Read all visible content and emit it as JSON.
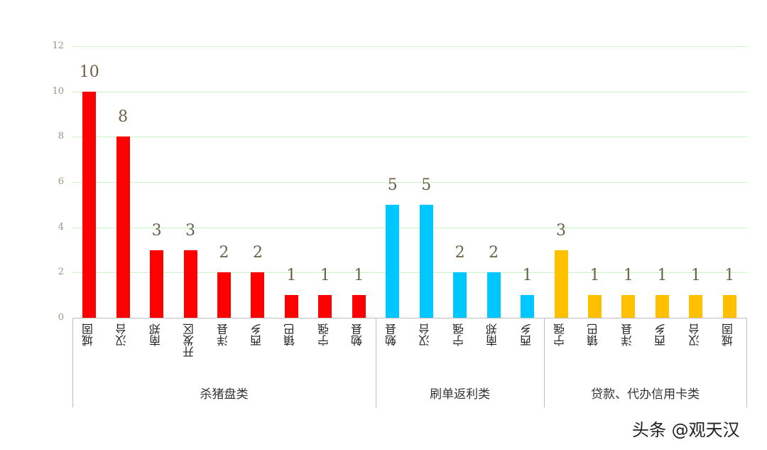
{
  "chart_data": {
    "type": "bar",
    "title": "",
    "xlabel": "",
    "ylabel": "",
    "ylim": [
      0,
      12
    ],
    "yticks": [
      0,
      2,
      4,
      6,
      8,
      10,
      12
    ],
    "grid": true,
    "legend": null,
    "groups": [
      {
        "name": "杀猪盘类",
        "color": "#ff0000",
        "categories": [
          "城固",
          "汉台",
          "南郑",
          "开发区",
          "洋县",
          "西乡",
          "镇巴",
          "宁强",
          "勉县"
        ],
        "values": [
          10,
          8,
          3,
          3,
          2,
          2,
          1,
          1,
          1
        ]
      },
      {
        "name": "刷单返利类",
        "color": "#00c8ff",
        "categories": [
          "勉县",
          "汉台",
          "宁强",
          "南郑",
          "西乡"
        ],
        "values": [
          5,
          5,
          2,
          2,
          1
        ]
      },
      {
        "name": "贷款、代办信用卡类",
        "color": "#ffc000",
        "categories": [
          "宁强",
          "镇巴",
          "洋县",
          "西乡",
          "汉台",
          "城固"
        ],
        "values": [
          3,
          1,
          1,
          1,
          1,
          1
        ]
      }
    ]
  },
  "yticks_labels": [
    "0",
    "2",
    "4",
    "6",
    "8",
    "10",
    "12"
  ],
  "watermark": "头条 @观天汉"
}
